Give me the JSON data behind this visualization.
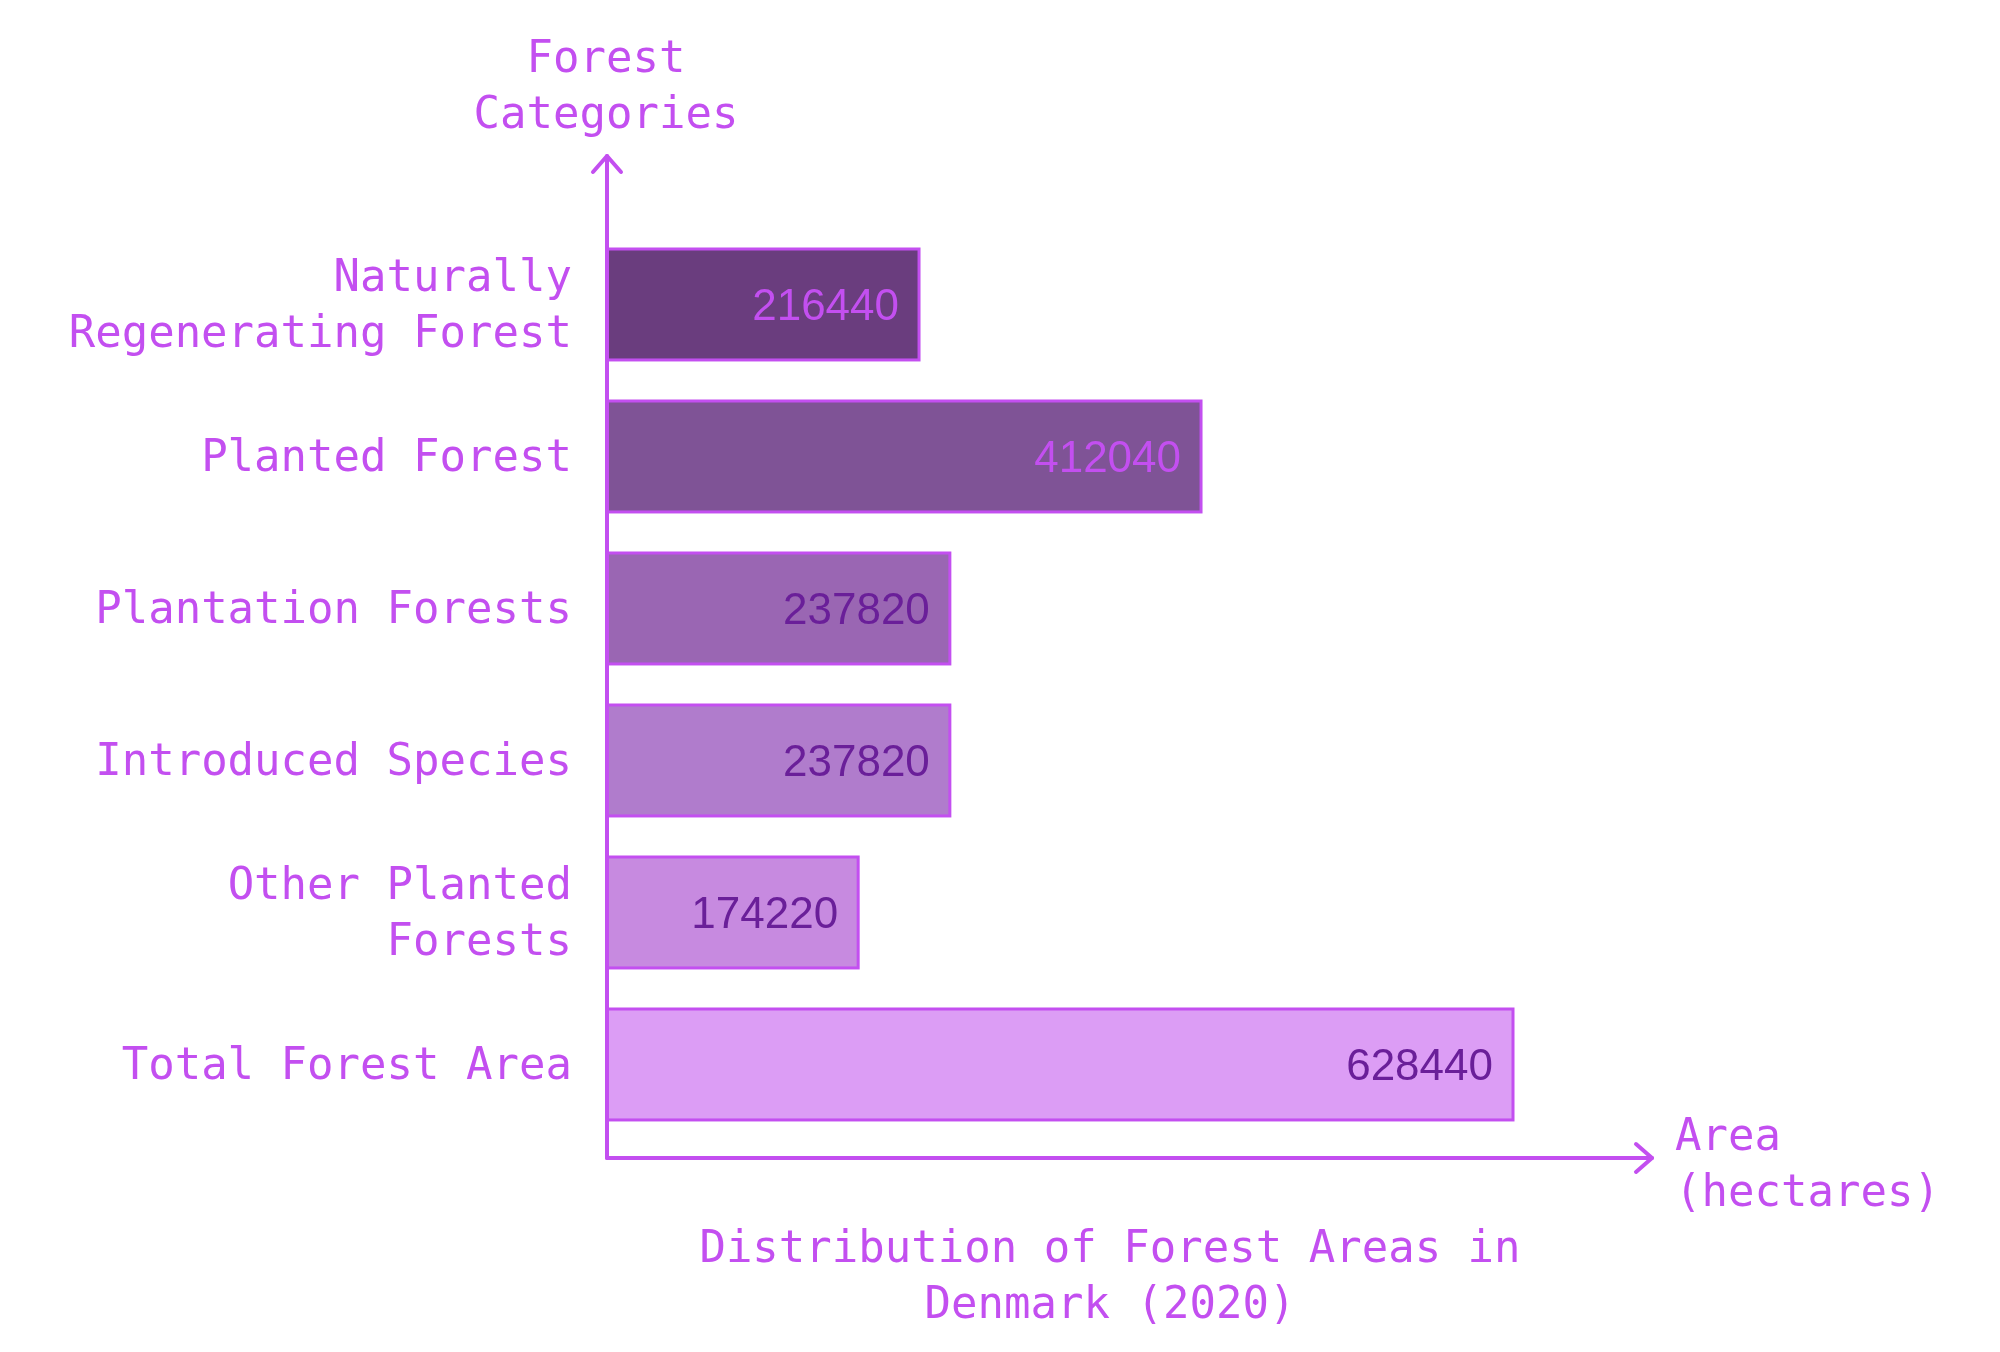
{
  "chart_data": {
    "type": "bar",
    "orientation": "horizontal",
    "title": "Distribution of Forest Areas in Denmark (2020)",
    "xlabel": "Area (hectares)",
    "ylabel": "Forest Categories",
    "categories": [
      "Naturally Regenerating Forest",
      "Planted Forest",
      "Plantation Forests",
      "Introduced Species",
      "Other Planted Forests",
      "Total Forest Area"
    ],
    "values": [
      216440,
      412040,
      237820,
      237820,
      174220,
      628440
    ],
    "colors": [
      "#6a3d7e",
      "#7f5396",
      "#9a66b3",
      "#b07ccc",
      "#c78ae0",
      "#dc9df5"
    ],
    "data_labels": true
  }
}
